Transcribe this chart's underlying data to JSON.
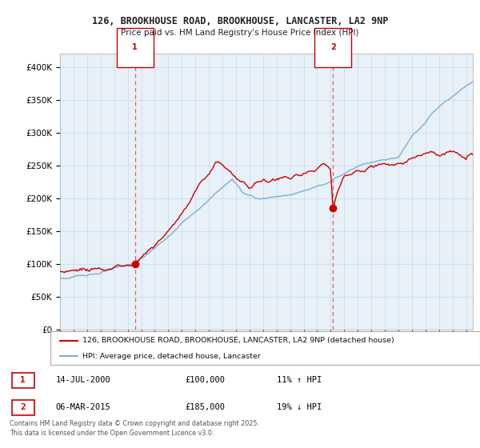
{
  "title": "126, BROOKHOUSE ROAD, BROOKHOUSE, LANCASTER, LA2 9NP",
  "subtitle": "Price paid vs. HM Land Registry's House Price Index (HPI)",
  "ylabel_ticks": [
    "£0",
    "£50K",
    "£100K",
    "£150K",
    "£200K",
    "£250K",
    "£300K",
    "£350K",
    "£400K"
  ],
  "ylim": [
    0,
    420000
  ],
  "yticks": [
    0,
    50000,
    100000,
    150000,
    200000,
    250000,
    300000,
    350000,
    400000
  ],
  "xlim_start": 1995.0,
  "xlim_end": 2025.5,
  "red_line_color": "#cc0000",
  "blue_line_color": "#7ab0d4",
  "blue_fill_color": "#d8e8f3",
  "vline_color": "#e06060",
  "marker1_x": 2000.54,
  "marker1_y": 100000,
  "marker2_x": 2015.17,
  "marker2_y": 185000,
  "legend_line1": "126, BROOKHOUSE ROAD, BROOKHOUSE, LANCASTER, LA2 9NP (detached house)",
  "legend_line2": "HPI: Average price, detached house, Lancaster",
  "table_row1": [
    "1",
    "14-JUL-2000",
    "£100,000",
    "11% ↑ HPI"
  ],
  "table_row2": [
    "2",
    "06-MAR-2015",
    "£185,000",
    "19% ↓ HPI"
  ],
  "footer": "Contains HM Land Registry data © Crown copyright and database right 2025.\nThis data is licensed under the Open Government Licence v3.0.",
  "background_color": "#ffffff",
  "grid_color": "#ccddee",
  "chart_bg_color": "#e8f0f8"
}
